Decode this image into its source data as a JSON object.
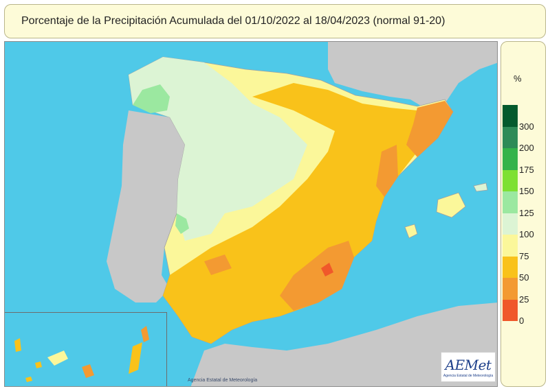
{
  "title": "Porcentaje de la Precipitación Acumulada del 01/10/2022 al 18/04/2023 (normal 91-20)",
  "credit": "Agencia Estatal de Meteorología",
  "logo": {
    "mark": "AEMet",
    "subtitle": "Agencia Estatal de Meteorología"
  },
  "legend": {
    "unit": "%",
    "classes": [
      {
        "from": 300,
        "label": "300",
        "color": "#045a2d"
      },
      {
        "from": 200,
        "label": "200",
        "color": "#2e8b57"
      },
      {
        "from": 175,
        "label": "175",
        "color": "#34b34a"
      },
      {
        "from": 150,
        "label": "150",
        "color": "#7ee032"
      },
      {
        "from": 125,
        "label": "125",
        "color": "#9be8a0"
      },
      {
        "from": 100,
        "label": "100",
        "color": "#dcf4d4"
      },
      {
        "from": 75,
        "label": "75",
        "color": "#fbf79a"
      },
      {
        "from": 50,
        "label": "50",
        "color": "#f9c21a"
      },
      {
        "from": 25,
        "label": "25",
        "color": "#f39a32"
      },
      {
        "from": 0,
        "label": "0",
        "color": "#f0582a"
      }
    ]
  },
  "colors": {
    "sea": "#4fc9e8",
    "neighbour_land": "#c8c8c8",
    "borders": "#a0a0a0"
  }
}
